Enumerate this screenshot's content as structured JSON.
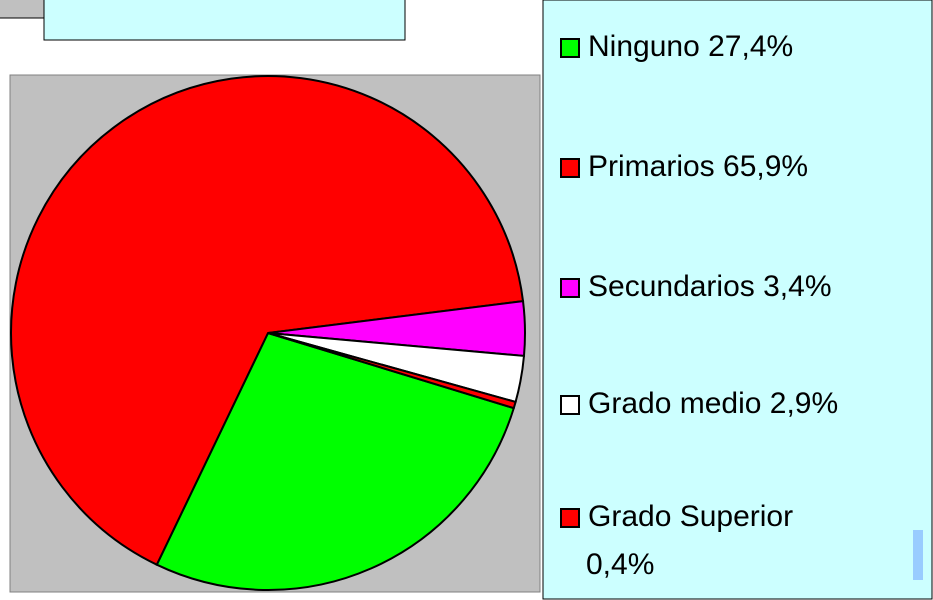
{
  "chart_data": {
    "type": "pie",
    "categories": [
      "Ninguno",
      "Primarios",
      "Secundarios",
      "Grado medio",
      "Grado Superior"
    ],
    "values": [
      27.4,
      65.9,
      3.4,
      2.9,
      0.4
    ],
    "value_labels": [
      "27,4%",
      "65,9%",
      "3,4%",
      "2,9%",
      "0,4%"
    ],
    "colors": [
      "#00ff00",
      "#ff0000",
      "#ff00ff",
      "#ffffff",
      "#ff0000"
    ]
  }
}
